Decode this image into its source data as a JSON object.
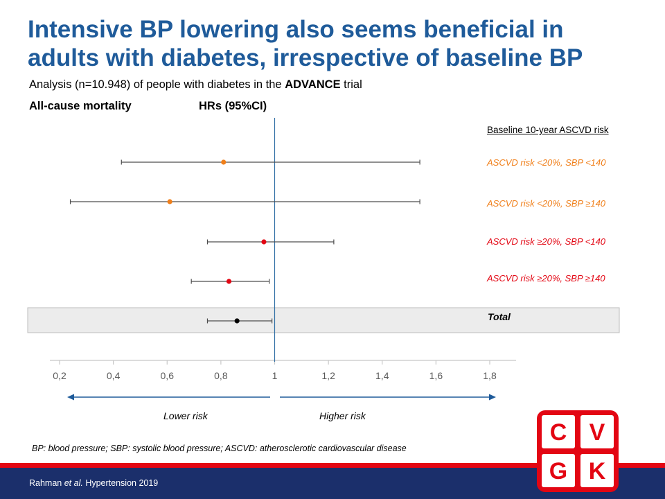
{
  "title": "Intensive BP lowering also seems beneficial in adults with diabetes, irrespective of baseline BP",
  "subtitle": {
    "pre": "Analysis (n=10.948) of people with diabetes in the ",
    "bold": "ADVANCE",
    "post": " trial"
  },
  "outcome_label": "All-cause mortality",
  "hr_header": "HRs (95%CI)",
  "legend_header": "Baseline 10-year ASCVD risk",
  "direction": {
    "lower": "Lower risk",
    "higher": "Higher risk"
  },
  "footnote": "BP: blood pressure; SBP: systolic blood pressure; ASCVD: atherosclerotic cardiovascular disease",
  "citation": {
    "author": "Rahman ",
    "etal": "et al.",
    "journal": " Hypertension 2019"
  },
  "logo": {
    "letters": [
      "C",
      "V",
      "G",
      "K"
    ],
    "color": "#e30613"
  },
  "colors": {
    "title": "#1f5b9a",
    "orange": "#f07f1a",
    "red": "#e30613",
    "black": "#000000",
    "axis_line": "#2e6da4",
    "footer": "#1b2f6b"
  },
  "chart_data": {
    "type": "forest",
    "xlim": [
      0.2,
      1.8
    ],
    "reference_line": 1,
    "x_ticks": [
      "0,2",
      "0,4",
      "0,6",
      "0,8",
      "1",
      "1,2",
      "1,4",
      "1,6",
      "1,8"
    ],
    "x_tick_values": [
      0.2,
      0.4,
      0.6,
      0.8,
      1.0,
      1.2,
      1.4,
      1.6,
      1.8
    ],
    "rows": [
      {
        "label": "ASCVD risk <20%, SBP <140",
        "hr": 0.81,
        "lo": 0.43,
        "hi": 1.54,
        "color": "#f07f1a"
      },
      {
        "label": "ASCVD risk <20%, SBP ≥140",
        "hr": 0.61,
        "lo": 0.24,
        "hi": 1.54,
        "color": "#f07f1a"
      },
      {
        "label": "ASCVD risk ≥20%, SBP <140",
        "hr": 0.96,
        "lo": 0.75,
        "hi": 1.22,
        "color": "#e30613"
      },
      {
        "label": "ASCVD risk ≥20%, SBP ≥140",
        "hr": 0.83,
        "lo": 0.69,
        "hi": 0.98,
        "color": "#e30613"
      },
      {
        "label": "Total",
        "hr": 0.86,
        "lo": 0.75,
        "hi": 0.99,
        "color": "#000000",
        "is_total": true
      }
    ]
  }
}
